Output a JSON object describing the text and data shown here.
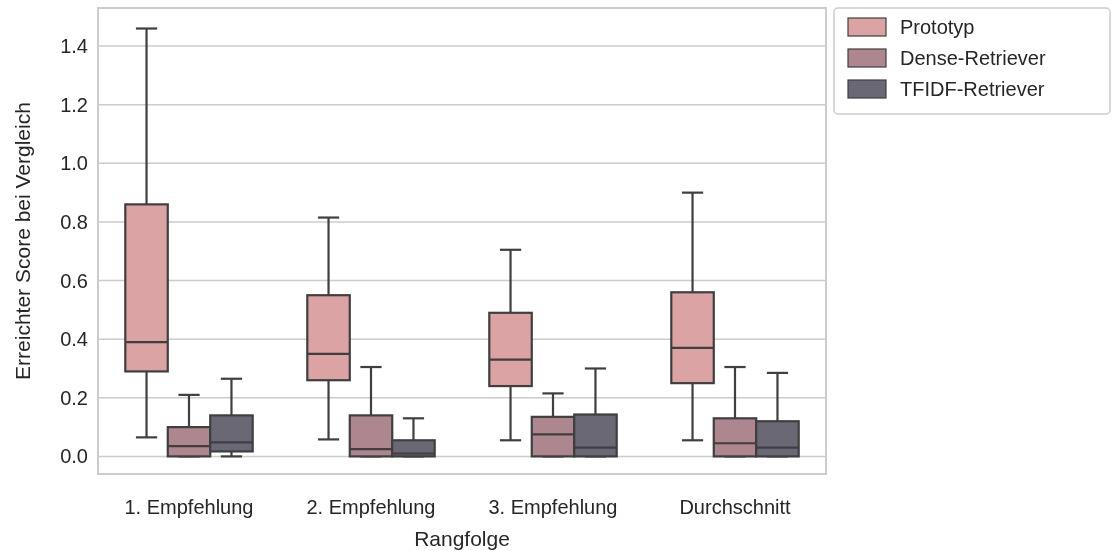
{
  "chart_data": {
    "type": "box",
    "xlabel": "Rangfolge",
    "ylabel": "Erreichter Score bei Vergleich",
    "categories": [
      "1. Empfehlung",
      "2. Empfehlung",
      "3. Empfehlung",
      "Durchschnitt"
    ],
    "ylim": [
      -0.06,
      1.53
    ],
    "yticks": [
      {
        "value": 0,
        "label": "0.0"
      },
      0.2,
      0.4,
      0.6,
      0.8,
      {
        "value": 1,
        "label": "1.0"
      },
      1.2,
      1.4
    ],
    "grid": "y",
    "legend": "top right",
    "series": [
      {
        "name": "Prototyp",
        "color": "#dba3a3",
        "boxes": [
          {
            "low": 0.065,
            "q1": 0.29,
            "median": 0.39,
            "q3": 0.86,
            "high": 1.46
          },
          {
            "low": 0.058,
            "q1": 0.26,
            "median": 0.35,
            "q3": 0.55,
            "high": 0.815
          },
          {
            "low": 0.055,
            "q1": 0.24,
            "median": 0.33,
            "q3": 0.49,
            "high": 0.705
          },
          {
            "low": 0.055,
            "q1": 0.25,
            "median": 0.37,
            "q3": 0.56,
            "high": 0.9
          }
        ]
      },
      {
        "name": "Dense-Retriever",
        "color": "#ad8690",
        "boxes": [
          {
            "low": 0,
            "q1": 0,
            "median": 0.035,
            "q3": 0.1,
            "high": 0.21
          },
          {
            "low": 0,
            "q1": 0,
            "median": 0.025,
            "q3": 0.14,
            "high": 0.305
          },
          {
            "low": 0,
            "q1": 0,
            "median": 0.075,
            "q3": 0.135,
            "high": 0.215
          },
          {
            "low": 0,
            "q1": 0,
            "median": 0.045,
            "q3": 0.13,
            "high": 0.305
          }
        ]
      },
      {
        "name": "TFIDF-Retriever",
        "color": "#6b6875",
        "boxes": [
          {
            "low": 0,
            "q1": 0.017,
            "median": 0.048,
            "q3": 0.14,
            "high": 0.265
          },
          {
            "low": 0,
            "q1": 0,
            "median": 0.01,
            "q3": 0.055,
            "high": 0.13
          },
          {
            "low": 0,
            "q1": 0,
            "median": 0.03,
            "q3": 0.143,
            "high": 0.3
          },
          {
            "low": 0,
            "q1": 0,
            "median": 0.03,
            "q3": 0.12,
            "high": 0.285
          }
        ]
      }
    ]
  }
}
